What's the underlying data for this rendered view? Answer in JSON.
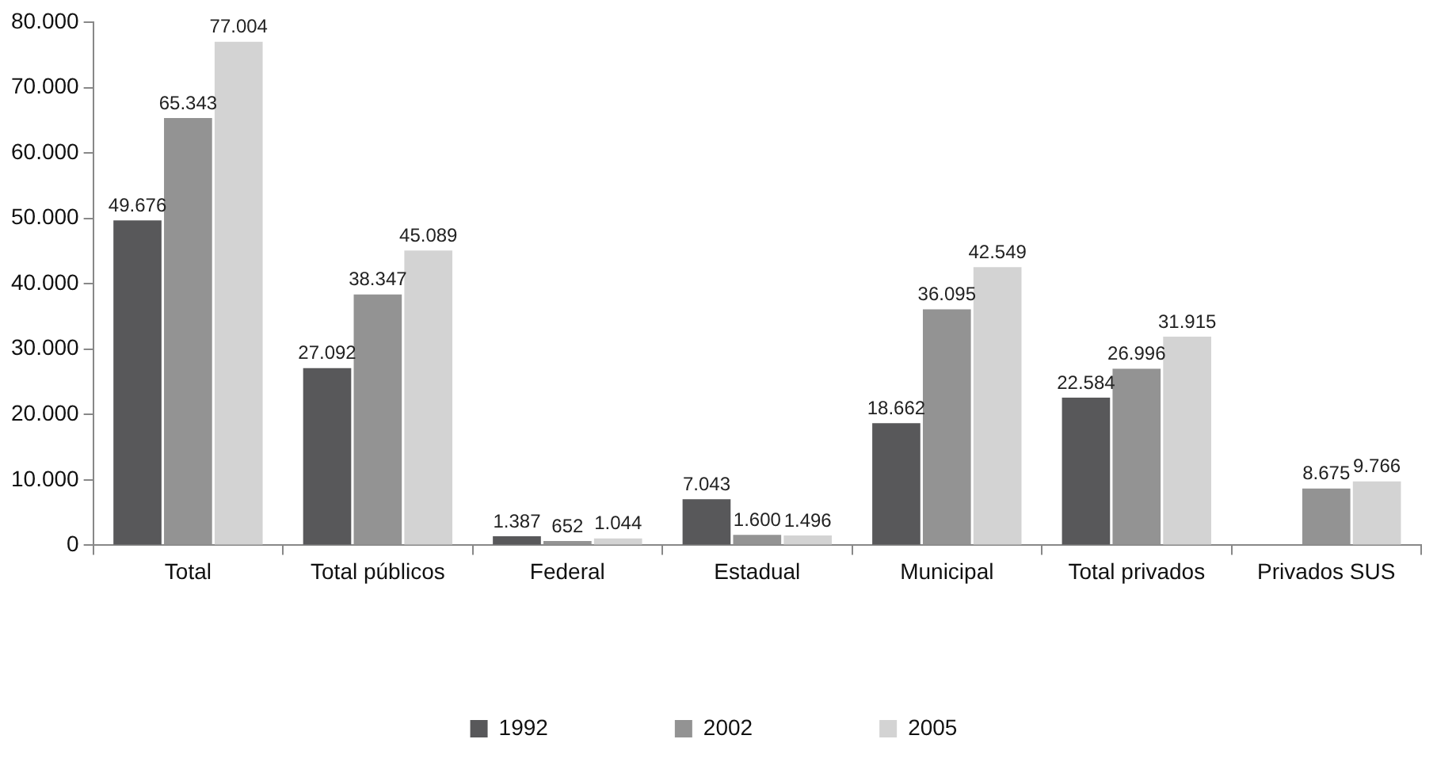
{
  "chart_data": {
    "type": "bar",
    "categories": [
      "Total",
      "Total públicos",
      "Federal",
      "Estadual",
      "Municipal",
      "Total privados",
      "Privados SUS"
    ],
    "series": [
      {
        "name": "1992",
        "color": "#58585a",
        "values": [
          49676,
          27092,
          1387,
          7043,
          18662,
          22584,
          null
        ],
        "value_labels": [
          "49.676",
          "27.092",
          "1.387",
          "7.043",
          "18.662",
          "22.584",
          null
        ]
      },
      {
        "name": "2002",
        "color": "#939393",
        "values": [
          65343,
          38347,
          652,
          1600,
          36095,
          26996,
          8675
        ],
        "value_labels": [
          "65.343",
          "38.347",
          "652",
          "1.600",
          "36.095",
          "26.996",
          "8.675"
        ]
      },
      {
        "name": "2005",
        "color": "#d3d3d3",
        "values": [
          77004,
          45089,
          1044,
          1496,
          42549,
          31915,
          9766
        ],
        "value_labels": [
          "77.004",
          "45.089",
          "1.044",
          "1.496",
          "42.549",
          "31.915",
          "9.766"
        ]
      }
    ],
    "ylim": [
      0,
      80000
    ],
    "yticks": [
      {
        "value": 0,
        "label": "0"
      },
      {
        "value": 10000,
        "label": "10.000"
      },
      {
        "value": 20000,
        "label": "20.000"
      },
      {
        "value": 30000,
        "label": "30.000"
      },
      {
        "value": 40000,
        "label": "40.000"
      },
      {
        "value": 50000,
        "label": "50.000"
      },
      {
        "value": 60000,
        "label": "60.000"
      },
      {
        "value": 70000,
        "label": "70.000"
      },
      {
        "value": 80000,
        "label": "80.000"
      }
    ],
    "grid": false,
    "legend": "bottom"
  }
}
